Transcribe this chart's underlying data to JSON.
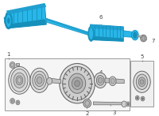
{
  "bg_color": "#ffffff",
  "axle_fill": "#29b6e8",
  "axle_dark": "#1590bb",
  "axle_mid": "#20a0d0",
  "part_fill": "#c0c0c0",
  "part_dark": "#888888",
  "part_outline": "#666666",
  "box_fill": "#f5f5f5",
  "box_border": "#999999",
  "label_color": "#444444",
  "leader_color": "#777777",
  "fig_width": 2.0,
  "fig_height": 1.47,
  "dpi": 100
}
